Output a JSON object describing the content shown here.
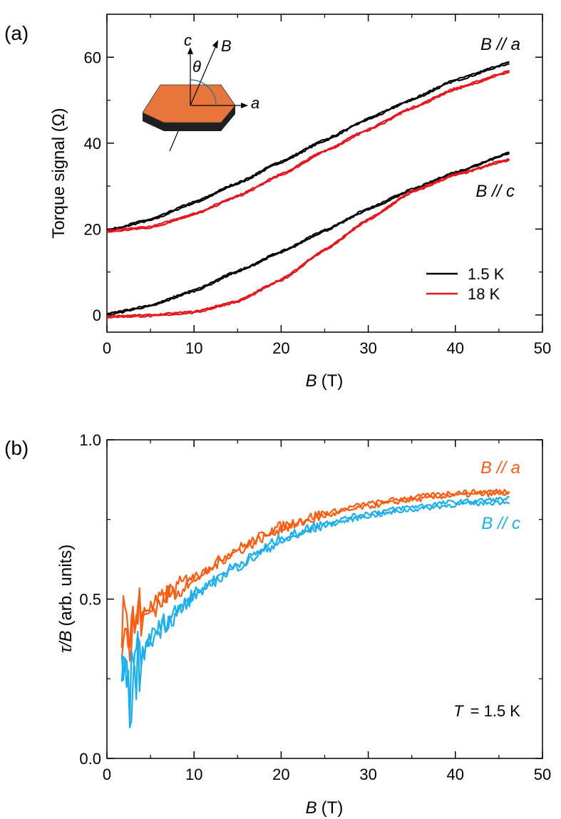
{
  "chart_data": [
    {
      "panel": "(a)",
      "type": "line",
      "xlabel_var": "B",
      "xlabel_unit": "(T)",
      "ylabel": "Torque signal (Ω)",
      "xlim": [
        0,
        50
      ],
      "ylim": [
        -4,
        70
      ],
      "xticks": [
        0,
        10,
        20,
        30,
        40,
        50
      ],
      "yticks": [
        0,
        20,
        40,
        60
      ],
      "grid": false,
      "legend": {
        "placement": "bottom-right",
        "entries": [
          {
            "label": "1.5 K",
            "color": "#000000"
          },
          {
            "label": "18 K",
            "color": "#e8141b"
          }
        ]
      },
      "series": [
        {
          "name": "B // a, 1.5 K",
          "color": "#000000",
          "x": [
            0,
            5,
            10,
            15,
            20,
            25,
            30,
            35,
            40,
            46.2
          ],
          "y": [
            19.5,
            22,
            26,
            30.5,
            35.5,
            40.5,
            45.5,
            50,
            54.5,
            58.5
          ]
        },
        {
          "name": "B // a, 18 K",
          "color": "#e8141b",
          "x": [
            0,
            5,
            10,
            15,
            20,
            25,
            30,
            35,
            40,
            46.2
          ],
          "y": [
            19.3,
            20.3,
            23.3,
            27.5,
            32.5,
            38,
            43,
            48,
            52.5,
            56.5
          ]
        },
        {
          "name": "B // c, 1.5 K",
          "color": "#000000",
          "x": [
            0,
            5,
            10,
            15,
            20,
            25,
            30,
            35,
            40,
            46.2
          ],
          "y": [
            0,
            2,
            5.5,
            10,
            14.5,
            19.5,
            24.5,
            29,
            33,
            37.5
          ]
        },
        {
          "name": "B // c, 18 K",
          "color": "#e8141b",
          "x": [
            0,
            5,
            10,
            15,
            20,
            25,
            30,
            35,
            40,
            46.2
          ],
          "y": [
            -0.5,
            -0.3,
            0.5,
            3,
            8,
            15,
            22,
            28.5,
            32.5,
            36
          ]
        }
      ],
      "series_labels": [
        {
          "var": "B",
          "text": " // a",
          "for": "B // a"
        },
        {
          "var": "B",
          "text": " // c",
          "for": "B // c"
        }
      ],
      "inset": {
        "axis_c": "c",
        "axis_a": "a",
        "field": "B",
        "angle": "θ",
        "crystal_color": "#e8763c"
      }
    },
    {
      "panel": "(b)",
      "type": "line",
      "xlabel_var": "B",
      "xlabel_unit": "(T)",
      "ylabel_var": "τ/B",
      "ylabel_unit": "(arb. units)",
      "xlim": [
        0,
        50
      ],
      "ylim": [
        0,
        1
      ],
      "xticks": [
        0,
        10,
        20,
        30,
        40,
        50
      ],
      "yticks": [
        0.0,
        0.5,
        1.0
      ],
      "ytick_labels": [
        "0.0",
        "0.5",
        "1.0"
      ],
      "grid": false,
      "annotation_var": "T",
      "annotation_value": "= 1.5 K",
      "series": [
        {
          "name": "B // a",
          "color": "#ff5a0e",
          "x": [
            1.7,
            2.5,
            3.5,
            5,
            7,
            10,
            15,
            20,
            25,
            30,
            35,
            40,
            46.2
          ],
          "y": [
            0.43,
            0.4,
            0.45,
            0.47,
            0.52,
            0.57,
            0.66,
            0.73,
            0.77,
            0.8,
            0.82,
            0.835,
            0.84
          ]
        },
        {
          "name": "B // c",
          "color": "#18aef0",
          "x": [
            1.7,
            2.5,
            3.5,
            5,
            7,
            10,
            15,
            20,
            25,
            30,
            35,
            40,
            46.2
          ],
          "y": [
            0.24,
            0.2,
            0.3,
            0.38,
            0.44,
            0.52,
            0.61,
            0.69,
            0.74,
            0.77,
            0.79,
            0.805,
            0.815
          ]
        }
      ],
      "series_labels": [
        {
          "var": "B",
          "text": " // a",
          "color": "#ff5a0e"
        },
        {
          "var": "B",
          "text": " // c",
          "color": "#18aef0"
        }
      ]
    }
  ]
}
